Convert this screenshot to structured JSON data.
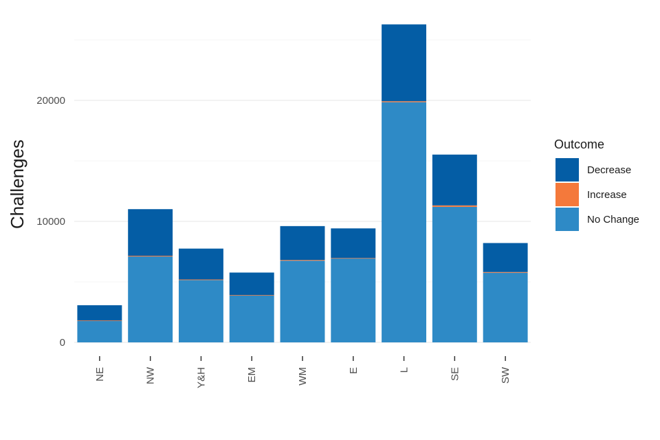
{
  "chart_data": {
    "type": "bar",
    "stacked": true,
    "categories": [
      "NE",
      "NW",
      "Y&H",
      "EM",
      "WM",
      "E",
      "L",
      "SE",
      "SW"
    ],
    "series": [
      {
        "name": "No Change",
        "color": "#2e8ac6",
        "values": [
          1800,
          7100,
          5150,
          3900,
          6750,
          6950,
          19850,
          11200,
          5750
        ]
      },
      {
        "name": "Increase",
        "color": "#f4793b",
        "values": [
          20,
          60,
          50,
          20,
          60,
          20,
          80,
          120,
          60
        ]
      },
      {
        "name": "Decrease",
        "color": "#045da5",
        "values": [
          1250,
          3850,
          2550,
          1850,
          2800,
          2450,
          6350,
          4200,
          2400
        ]
      }
    ],
    "ylabel": "Challenges",
    "xlabel": "",
    "ylim": [
      0,
      27000
    ],
    "yticks": [
      0,
      10000,
      20000
    ],
    "ytick_labels": [
      "0",
      "10000",
      "20000"
    ],
    "grid": true,
    "legend": {
      "title": "Outcome",
      "position": "right",
      "entries": [
        {
          "label": "Decrease",
          "color": "#045da5"
        },
        {
          "label": "Increase",
          "color": "#f4793b"
        },
        {
          "label": "No Change",
          "color": "#2e8ac6"
        }
      ]
    }
  }
}
